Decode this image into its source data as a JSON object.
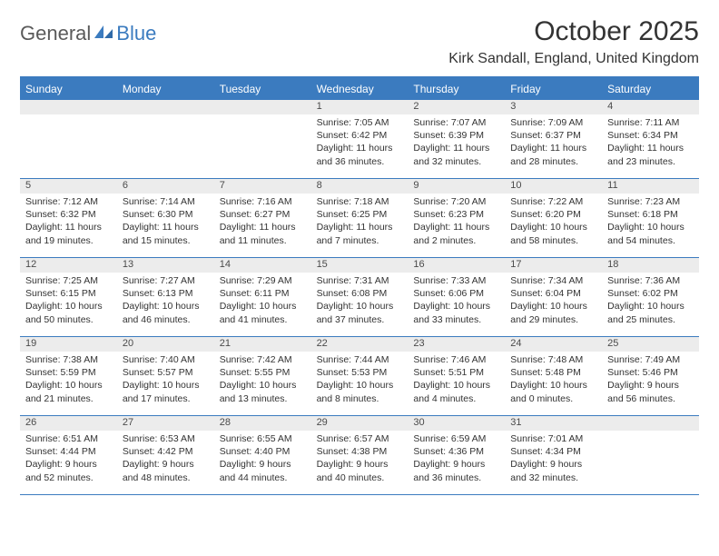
{
  "logo": {
    "part1": "General",
    "part2": "Blue"
  },
  "title": "October 2025",
  "location": "Kirk Sandall, England, United Kingdom",
  "colors": {
    "brand_blue": "#3b7bbf",
    "header_row_bg": "#ececec",
    "text": "#333333",
    "logo_gray": "#5a5a5a"
  },
  "day_names": [
    "Sunday",
    "Monday",
    "Tuesday",
    "Wednesday",
    "Thursday",
    "Friday",
    "Saturday"
  ],
  "weeks": [
    [
      {
        "day": "",
        "lines": []
      },
      {
        "day": "",
        "lines": []
      },
      {
        "day": "",
        "lines": []
      },
      {
        "day": "1",
        "lines": [
          "Sunrise: 7:05 AM",
          "Sunset: 6:42 PM",
          "Daylight: 11 hours and 36 minutes."
        ]
      },
      {
        "day": "2",
        "lines": [
          "Sunrise: 7:07 AM",
          "Sunset: 6:39 PM",
          "Daylight: 11 hours and 32 minutes."
        ]
      },
      {
        "day": "3",
        "lines": [
          "Sunrise: 7:09 AM",
          "Sunset: 6:37 PM",
          "Daylight: 11 hours and 28 minutes."
        ]
      },
      {
        "day": "4",
        "lines": [
          "Sunrise: 7:11 AM",
          "Sunset: 6:34 PM",
          "Daylight: 11 hours and 23 minutes."
        ]
      }
    ],
    [
      {
        "day": "5",
        "lines": [
          "Sunrise: 7:12 AM",
          "Sunset: 6:32 PM",
          "Daylight: 11 hours and 19 minutes."
        ]
      },
      {
        "day": "6",
        "lines": [
          "Sunrise: 7:14 AM",
          "Sunset: 6:30 PM",
          "Daylight: 11 hours and 15 minutes."
        ]
      },
      {
        "day": "7",
        "lines": [
          "Sunrise: 7:16 AM",
          "Sunset: 6:27 PM",
          "Daylight: 11 hours and 11 minutes."
        ]
      },
      {
        "day": "8",
        "lines": [
          "Sunrise: 7:18 AM",
          "Sunset: 6:25 PM",
          "Daylight: 11 hours and 7 minutes."
        ]
      },
      {
        "day": "9",
        "lines": [
          "Sunrise: 7:20 AM",
          "Sunset: 6:23 PM",
          "Daylight: 11 hours and 2 minutes."
        ]
      },
      {
        "day": "10",
        "lines": [
          "Sunrise: 7:22 AM",
          "Sunset: 6:20 PM",
          "Daylight: 10 hours and 58 minutes."
        ]
      },
      {
        "day": "11",
        "lines": [
          "Sunrise: 7:23 AM",
          "Sunset: 6:18 PM",
          "Daylight: 10 hours and 54 minutes."
        ]
      }
    ],
    [
      {
        "day": "12",
        "lines": [
          "Sunrise: 7:25 AM",
          "Sunset: 6:15 PM",
          "Daylight: 10 hours and 50 minutes."
        ]
      },
      {
        "day": "13",
        "lines": [
          "Sunrise: 7:27 AM",
          "Sunset: 6:13 PM",
          "Daylight: 10 hours and 46 minutes."
        ]
      },
      {
        "day": "14",
        "lines": [
          "Sunrise: 7:29 AM",
          "Sunset: 6:11 PM",
          "Daylight: 10 hours and 41 minutes."
        ]
      },
      {
        "day": "15",
        "lines": [
          "Sunrise: 7:31 AM",
          "Sunset: 6:08 PM",
          "Daylight: 10 hours and 37 minutes."
        ]
      },
      {
        "day": "16",
        "lines": [
          "Sunrise: 7:33 AM",
          "Sunset: 6:06 PM",
          "Daylight: 10 hours and 33 minutes."
        ]
      },
      {
        "day": "17",
        "lines": [
          "Sunrise: 7:34 AM",
          "Sunset: 6:04 PM",
          "Daylight: 10 hours and 29 minutes."
        ]
      },
      {
        "day": "18",
        "lines": [
          "Sunrise: 7:36 AM",
          "Sunset: 6:02 PM",
          "Daylight: 10 hours and 25 minutes."
        ]
      }
    ],
    [
      {
        "day": "19",
        "lines": [
          "Sunrise: 7:38 AM",
          "Sunset: 5:59 PM",
          "Daylight: 10 hours and 21 minutes."
        ]
      },
      {
        "day": "20",
        "lines": [
          "Sunrise: 7:40 AM",
          "Sunset: 5:57 PM",
          "Daylight: 10 hours and 17 minutes."
        ]
      },
      {
        "day": "21",
        "lines": [
          "Sunrise: 7:42 AM",
          "Sunset: 5:55 PM",
          "Daylight: 10 hours and 13 minutes."
        ]
      },
      {
        "day": "22",
        "lines": [
          "Sunrise: 7:44 AM",
          "Sunset: 5:53 PM",
          "Daylight: 10 hours and 8 minutes."
        ]
      },
      {
        "day": "23",
        "lines": [
          "Sunrise: 7:46 AM",
          "Sunset: 5:51 PM",
          "Daylight: 10 hours and 4 minutes."
        ]
      },
      {
        "day": "24",
        "lines": [
          "Sunrise: 7:48 AM",
          "Sunset: 5:48 PM",
          "Daylight: 10 hours and 0 minutes."
        ]
      },
      {
        "day": "25",
        "lines": [
          "Sunrise: 7:49 AM",
          "Sunset: 5:46 PM",
          "Daylight: 9 hours and 56 minutes."
        ]
      }
    ],
    [
      {
        "day": "26",
        "lines": [
          "Sunrise: 6:51 AM",
          "Sunset: 4:44 PM",
          "Daylight: 9 hours and 52 minutes."
        ]
      },
      {
        "day": "27",
        "lines": [
          "Sunrise: 6:53 AM",
          "Sunset: 4:42 PM",
          "Daylight: 9 hours and 48 minutes."
        ]
      },
      {
        "day": "28",
        "lines": [
          "Sunrise: 6:55 AM",
          "Sunset: 4:40 PM",
          "Daylight: 9 hours and 44 minutes."
        ]
      },
      {
        "day": "29",
        "lines": [
          "Sunrise: 6:57 AM",
          "Sunset: 4:38 PM",
          "Daylight: 9 hours and 40 minutes."
        ]
      },
      {
        "day": "30",
        "lines": [
          "Sunrise: 6:59 AM",
          "Sunset: 4:36 PM",
          "Daylight: 9 hours and 36 minutes."
        ]
      },
      {
        "day": "31",
        "lines": [
          "Sunrise: 7:01 AM",
          "Sunset: 4:34 PM",
          "Daylight: 9 hours and 32 minutes."
        ]
      },
      {
        "day": "",
        "lines": []
      }
    ]
  ]
}
